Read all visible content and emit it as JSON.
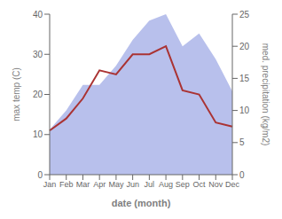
{
  "chart_data": {
    "type": "line",
    "categories": [
      "Jan",
      "Feb",
      "Mar",
      "Apr",
      "May",
      "Jun",
      "Jul",
      "Aug",
      "Sep",
      "Oct",
      "Nov",
      "Dec"
    ],
    "series": [
      {
        "type": "area",
        "axis": "y2",
        "color": "#b8c0ec",
        "values": [
          7,
          10,
          14,
          14,
          17,
          21,
          24,
          25,
          20,
          22,
          18,
          13
        ]
      },
      {
        "type": "line",
        "color": "#aa3333",
        "values": [
          11,
          14,
          19,
          26,
          25,
          30,
          30,
          32,
          21,
          20,
          13,
          12
        ]
      }
    ],
    "xlabel": "date (month)",
    "ylabel": "max temp (C)",
    "y2label": "med. precipitation (kg/m2)",
    "ylim": [
      0,
      40
    ],
    "yticks": [
      0,
      10,
      20,
      30,
      40
    ],
    "y2lim": [
      0,
      25
    ],
    "y2ticks": [
      0,
      5,
      10,
      15,
      20,
      25
    ],
    "grid": false
  }
}
